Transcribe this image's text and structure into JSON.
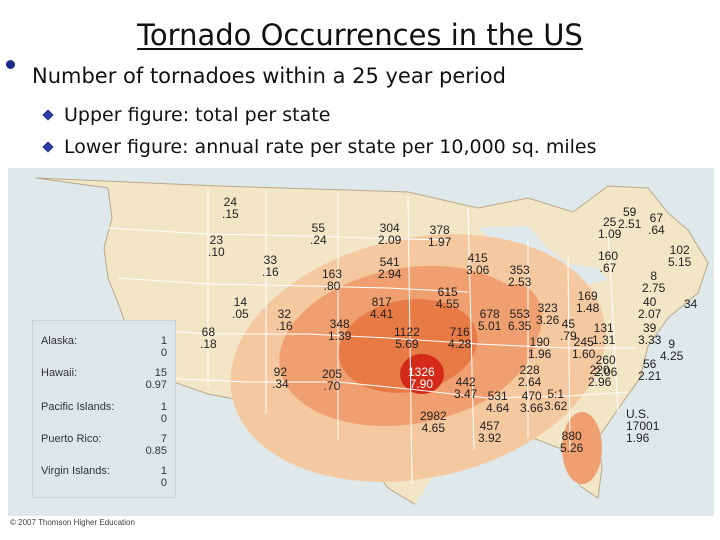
{
  "slide": {
    "title": "Tornado Occurrences in the US",
    "bullet": "Number of tornadoes within a 25 year period",
    "sub_bullets": [
      "Upper figure: total per state",
      "Lower figure: annual rate per state per 10,000 sq. miles"
    ]
  },
  "map": {
    "colors": {
      "land": "#f2e6c6",
      "water": "#dfe8ea",
      "zone_light": "#f5c9a0",
      "zone_mid": "#f0a070",
      "zone_dark": "#e87a45",
      "zone_core": "#d42a1a"
    },
    "states": [
      {
        "id": "wa",
        "total": "24",
        "rate": ".15"
      },
      {
        "id": "or",
        "total": "23",
        "rate": ".10"
      },
      {
        "id": "mt",
        "total": "55",
        "rate": ".24"
      },
      {
        "id": "nd",
        "total": "304",
        "rate": "2.09"
      },
      {
        "id": "mn",
        "total": "378",
        "rate": "1.97"
      },
      {
        "id": "id",
        "total": "33",
        "rate": ".16"
      },
      {
        "id": "wy",
        "total": "163",
        "rate": ".80"
      },
      {
        "id": "sd",
        "total": "541",
        "rate": "2.94"
      },
      {
        "id": "wi",
        "total": "415",
        "rate": "3.06"
      },
      {
        "id": "mi",
        "total": "353",
        "rate": "2.53"
      },
      {
        "id": "nv",
        "total": "14",
        "rate": ".05"
      },
      {
        "id": "ne",
        "total": "817",
        "rate": "4.41"
      },
      {
        "id": "ia",
        "total": "615",
        "rate": "4.55"
      },
      {
        "id": "ut",
        "total": "32",
        "rate": ".16"
      },
      {
        "id": "co",
        "total": "348",
        "rate": "1.39"
      },
      {
        "id": "ca",
        "total": "68",
        "rate": ".18"
      },
      {
        "id": "ks",
        "total": "1122",
        "rate": "5.69"
      },
      {
        "id": "mo",
        "total": "716",
        "rate": "4.28"
      },
      {
        "id": "il",
        "total": "678",
        "rate": "5.01"
      },
      {
        "id": "in",
        "total": "553",
        "rate": "6.35"
      },
      {
        "id": "oh",
        "total": "323",
        "rate": "3.26"
      },
      {
        "id": "pa",
        "total": "169",
        "rate": "1.48"
      },
      {
        "id": "ny",
        "total": "160",
        "rate": ".67"
      },
      {
        "id": "vt",
        "total": "59",
        "rate": "2.51"
      },
      {
        "id": "me",
        "total": "25",
        "rate": "1.09"
      },
      {
        "id": "nh",
        "total": "67",
        "rate": ".64"
      },
      {
        "id": "az",
        "total": "92",
        "rate": ".34"
      },
      {
        "id": "nm",
        "total": "205",
        "rate": ".70"
      },
      {
        "id": "ok",
        "total": "1326",
        "rate": "7.90"
      },
      {
        "id": "ar",
        "total": "442",
        "rate": "3.47"
      },
      {
        "id": "tn",
        "total": "190",
        "rate": "1.96"
      },
      {
        "id": "ky",
        "total": "245",
        "rate": "1.60"
      },
      {
        "id": "wv",
        "total": "45",
        "rate": ".79"
      },
      {
        "id": "va",
        "total": "131",
        "rate": "1.31"
      },
      {
        "id": "nc",
        "total": "260",
        "rate": "2.06"
      },
      {
        "id": "md",
        "total": "56",
        "rate": "2.21"
      },
      {
        "id": "nj",
        "total": "40",
        "rate": "2.07"
      },
      {
        "id": "de",
        "total": "9",
        "rate": "4.25"
      },
      {
        "id": "ma",
        "total": "102",
        "rate": "5.15"
      },
      {
        "id": "ri",
        "total": "8",
        "rate": "2.75"
      },
      {
        "id": "ct",
        "total": "39",
        "rate": "3.33"
      },
      {
        "id": "ct2",
        "total": "34",
        "rate": ""
      },
      {
        "id": "tx",
        "total": "2982",
        "rate": "4.65"
      },
      {
        "id": "la",
        "total": "457",
        "rate": "3.92"
      },
      {
        "id": "ms",
        "total": "531",
        "rate": "4.64"
      },
      {
        "id": "al",
        "total": "470",
        "rate": "3.66"
      },
      {
        "id": "ga",
        "total": "5:1",
        "rate": "3.62"
      },
      {
        "id": "sc",
        "total": "228",
        "rate": "2.64"
      },
      {
        "id": "sc2",
        "total": "220",
        "rate": "2.96"
      },
      {
        "id": "fl",
        "total": "880",
        "rate": "5.26"
      }
    ],
    "us_total": {
      "label": "U.S.",
      "total": "17001",
      "rate": "1.96"
    }
  },
  "legend": [
    {
      "name": "Alaska:",
      "values": "1\n0"
    },
    {
      "name": "Hawaii:",
      "values": "15\n0.97"
    },
    {
      "name": "Pacific Islands:",
      "values": "1\n0"
    },
    {
      "name": "Puerto Rico:",
      "values": "7\n0.85"
    },
    {
      "name": "Virgin Islands:",
      "values": "1\n0"
    }
  ],
  "copyright": "© 2007 Thomson Higher Education"
}
